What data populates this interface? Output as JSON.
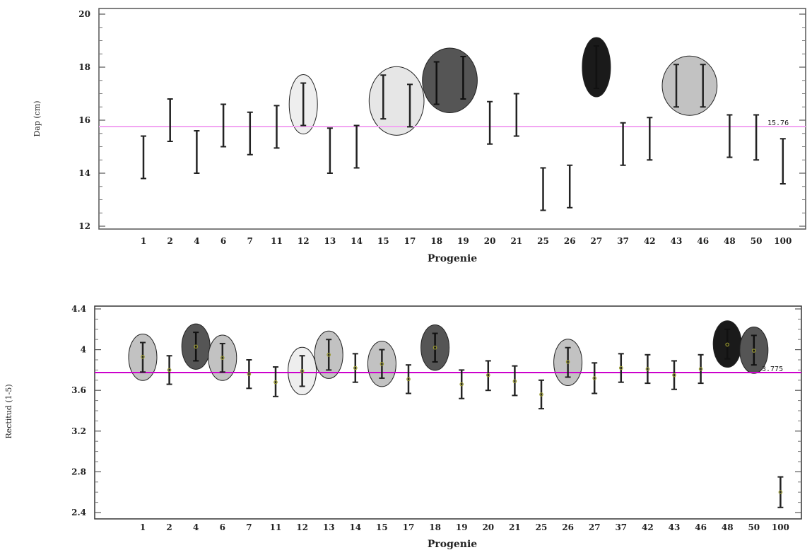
{
  "chart_data": [
    {
      "type": "scatter",
      "subtype": "interval-plot",
      "xlabel": "Progenie",
      "ylabel": "Dap (cm)",
      "ylim": [
        12,
        20
      ],
      "yticks": [
        "12",
        "14",
        "16",
        "18",
        "20"
      ],
      "grand_mean": 15.76,
      "grand_mean_label": "15.76",
      "categories": [
        "1",
        "2",
        "4",
        "6",
        "7",
        "11",
        "12",
        "13",
        "14",
        "15",
        "17",
        "18",
        "19",
        "20",
        "21",
        "25",
        "26",
        "27",
        "37",
        "42",
        "43",
        "46",
        "48",
        "50",
        "100"
      ],
      "intervals": [
        {
          "low": 13.8,
          "high": 15.4
        },
        {
          "low": 15.2,
          "high": 16.8
        },
        {
          "low": 14.0,
          "high": 15.6
        },
        {
          "low": 15.0,
          "high": 16.6
        },
        {
          "low": 14.7,
          "high": 16.3
        },
        {
          "low": 14.95,
          "high": 16.55
        },
        {
          "low": 15.8,
          "high": 17.4
        },
        {
          "low": 14.0,
          "high": 15.7
        },
        {
          "low": 14.2,
          "high": 15.8
        },
        {
          "low": 16.05,
          "high": 17.7
        },
        {
          "low": 15.75,
          "high": 17.35
        },
        {
          "low": 16.6,
          "high": 18.2
        },
        {
          "low": 16.8,
          "high": 18.4
        },
        {
          "low": 15.1,
          "high": 16.7
        },
        {
          "low": 15.4,
          "high": 17.0
        },
        {
          "low": 12.6,
          "high": 14.2
        },
        {
          "low": 12.7,
          "high": 14.3
        },
        {
          "low": 17.2,
          "high": 18.8
        },
        {
          "low": 14.3,
          "high": 15.9
        },
        {
          "low": 14.5,
          "high": 16.1
        },
        {
          "low": 16.5,
          "high": 18.1
        },
        {
          "low": 16.5,
          "high": 18.1
        },
        {
          "low": 14.6,
          "high": 16.2
        },
        {
          "low": 14.5,
          "high": 16.2
        },
        {
          "low": 13.6,
          "high": 15.3
        }
      ],
      "highlights": [
        {
          "from": 6,
          "to": 6,
          "shade": "#eeeeee"
        },
        {
          "from": 9,
          "to": 10,
          "shade": "#e6e6e6"
        },
        {
          "from": 11,
          "to": 12,
          "shade": "#555555"
        },
        {
          "from": 17,
          "to": 17,
          "shade": "#1a1a1a"
        },
        {
          "from": 20,
          "to": 21,
          "shade": "#c2c2c2"
        }
      ],
      "mean_line_color": "#f2a6f2"
    },
    {
      "type": "scatter",
      "subtype": "interval-plot",
      "xlabel": "Progenie",
      "ylabel": "Rectitud (1-5)",
      "ylim": [
        2.4,
        4.4
      ],
      "yticks": [
        "2.4",
        "2.8",
        "3.2",
        "3.6",
        "4",
        "4.4"
      ],
      "grand_mean": 3.775,
      "grand_mean_label": "3.775",
      "categories": [
        "1",
        "2",
        "4",
        "6",
        "7",
        "11",
        "12",
        "13",
        "14",
        "15",
        "17",
        "18",
        "19",
        "20",
        "21",
        "25",
        "26",
        "27",
        "37",
        "42",
        "43",
        "46",
        "48",
        "50",
        "100"
      ],
      "intervals": [
        {
          "low": 3.78,
          "mean": 3.93,
          "high": 4.07
        },
        {
          "low": 3.66,
          "mean": 3.8,
          "high": 3.94
        },
        {
          "low": 3.89,
          "mean": 4.03,
          "high": 4.17
        },
        {
          "low": 3.78,
          "mean": 3.92,
          "high": 4.06
        },
        {
          "low": 3.62,
          "mean": 3.76,
          "high": 3.9
        },
        {
          "low": 3.54,
          "mean": 3.68,
          "high": 3.83
        },
        {
          "low": 3.64,
          "mean": 3.79,
          "high": 3.94
        },
        {
          "low": 3.8,
          "mean": 3.95,
          "high": 4.1
        },
        {
          "low": 3.68,
          "mean": 3.82,
          "high": 3.96
        },
        {
          "low": 3.72,
          "mean": 3.86,
          "high": 4.0
        },
        {
          "low": 3.57,
          "mean": 3.71,
          "high": 3.85
        },
        {
          "low": 3.88,
          "mean": 4.02,
          "high": 4.16
        },
        {
          "low": 3.52,
          "mean": 3.66,
          "high": 3.8
        },
        {
          "low": 3.6,
          "mean": 3.75,
          "high": 3.89
        },
        {
          "low": 3.55,
          "mean": 3.69,
          "high": 3.84
        },
        {
          "low": 3.42,
          "mean": 3.56,
          "high": 3.7
        },
        {
          "low": 3.73,
          "mean": 3.88,
          "high": 4.02
        },
        {
          "low": 3.57,
          "mean": 3.72,
          "high": 3.87
        },
        {
          "low": 3.68,
          "mean": 3.82,
          "high": 3.96
        },
        {
          "low": 3.67,
          "mean": 3.81,
          "high": 3.95
        },
        {
          "low": 3.61,
          "mean": 3.75,
          "high": 3.89
        },
        {
          "low": 3.67,
          "mean": 3.81,
          "high": 3.95
        },
        {
          "low": 3.91,
          "mean": 4.05,
          "high": 4.2
        },
        {
          "low": 3.85,
          "mean": 3.99,
          "high": 4.14
        },
        {
          "low": 2.45,
          "mean": 2.6,
          "high": 2.75
        }
      ],
      "highlights": [
        {
          "from": 0,
          "to": 0,
          "shade": "#c2c2c2"
        },
        {
          "from": 2,
          "to": 2,
          "shade": "#555555"
        },
        {
          "from": 3,
          "to": 3,
          "shade": "#c2c2c2"
        },
        {
          "from": 6,
          "to": 6,
          "shade": "#eeeeee"
        },
        {
          "from": 7,
          "to": 7,
          "shade": "#c2c2c2"
        },
        {
          "from": 9,
          "to": 9,
          "shade": "#c2c2c2"
        },
        {
          "from": 11,
          "to": 11,
          "shade": "#555555"
        },
        {
          "from": 16,
          "to": 16,
          "shade": "#c2c2c2"
        },
        {
          "from": 22,
          "to": 22,
          "shade": "#1a1a1a"
        },
        {
          "from": 23,
          "to": 23,
          "shade": "#555555"
        }
      ],
      "mean_line_color": "#cc00cc",
      "mean_marker_color": "#9a9a30"
    }
  ]
}
